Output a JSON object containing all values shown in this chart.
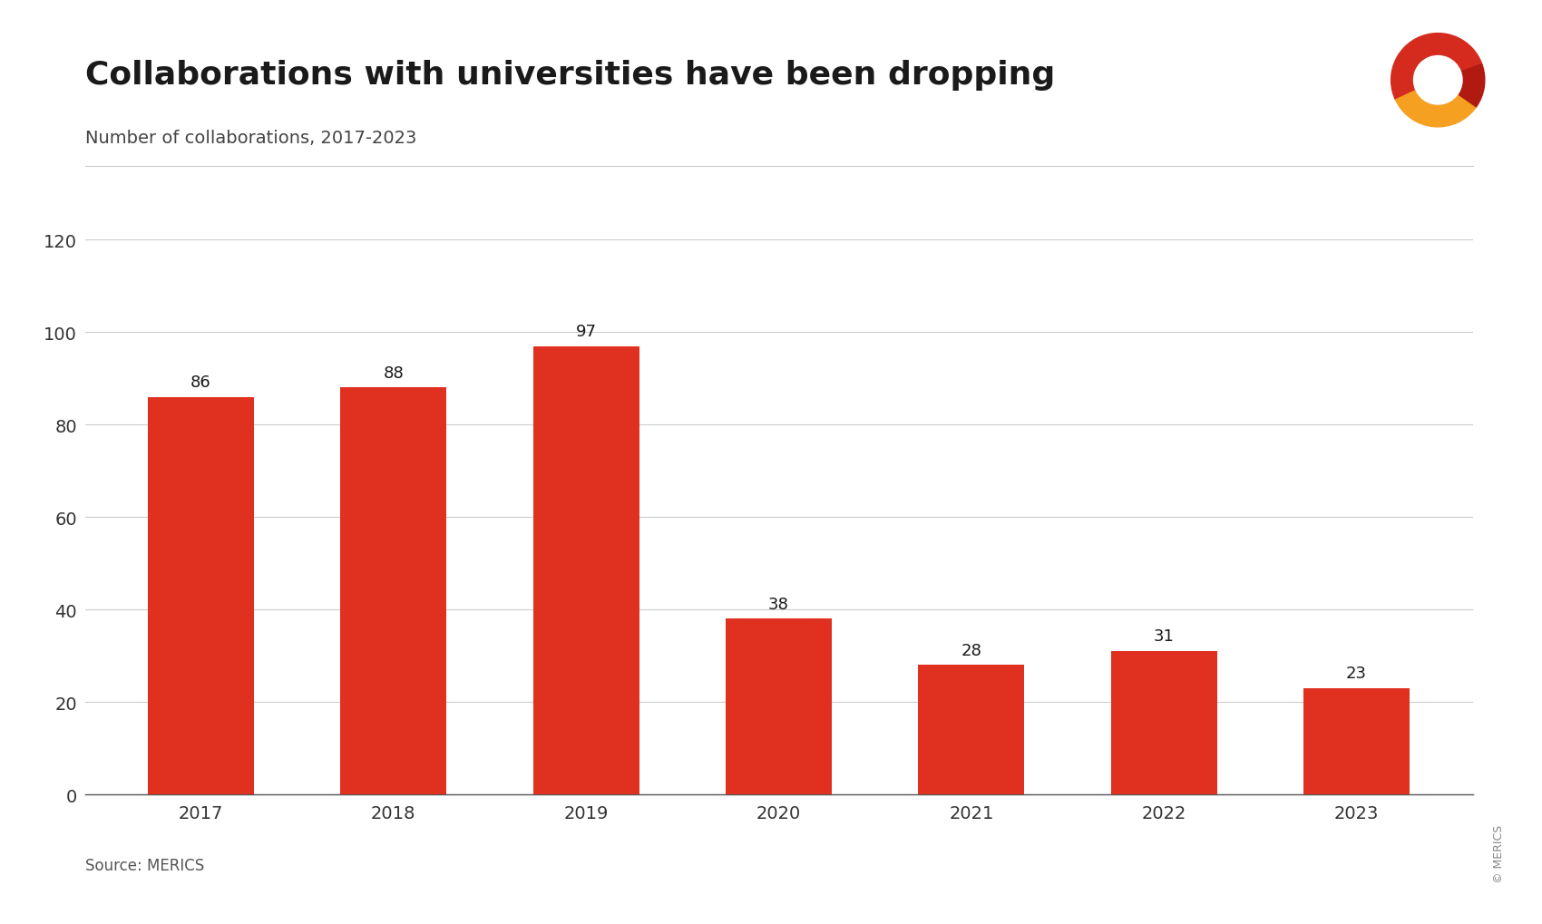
{
  "title": "Collaborations with universities have been dropping",
  "subtitle": "Number of collaborations, 2017-2023",
  "categories": [
    "2017",
    "2018",
    "2019",
    "2020",
    "2021",
    "2022",
    "2023"
  ],
  "values": [
    86,
    88,
    97,
    38,
    28,
    31,
    23
  ],
  "bar_color": "#e03020",
  "ylim": [
    0,
    120
  ],
  "yticks": [
    0,
    20,
    40,
    60,
    80,
    100,
    120
  ],
  "title_fontsize": 26,
  "subtitle_fontsize": 14,
  "tick_fontsize": 14,
  "label_fontsize": 13,
  "source_fontsize": 12,
  "copyright_fontsize": 9,
  "source_text": "Source: MERICS",
  "copyright_text": "© MERICS",
  "background_color": "#ffffff",
  "title_color": "#1a1a1a",
  "subtitle_color": "#444444",
  "tick_color": "#333333",
  "grid_color": "#cccccc",
  "source_color": "#555555",
  "logo_colors": [
    "#e03020",
    "#f5a623",
    "#c0392b"
  ],
  "logo_wedge1": [
    25,
    210
  ],
  "logo_wedge2": [
    210,
    330
  ],
  "logo_wedge3": [
    330,
    385
  ]
}
